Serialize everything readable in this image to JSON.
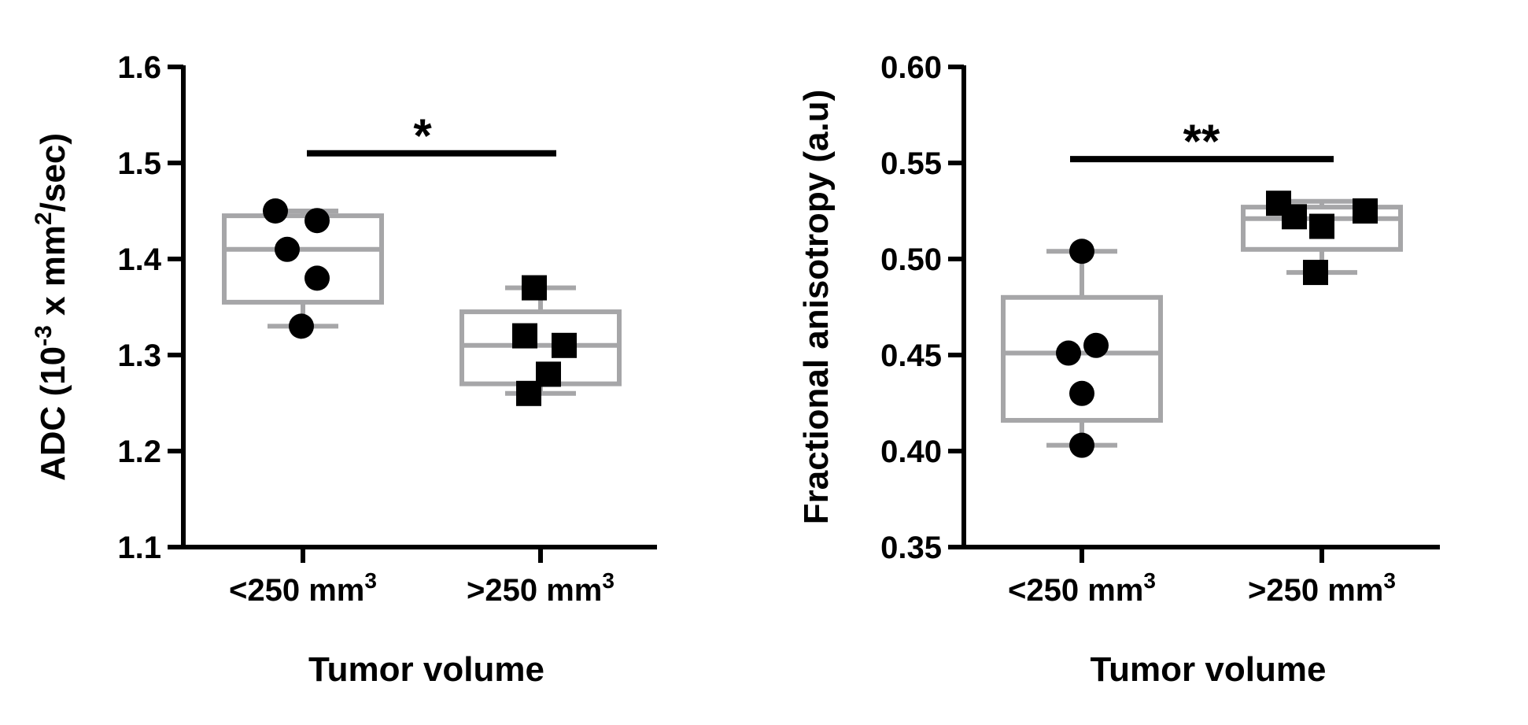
{
  "chart_data": [
    {
      "type": "box",
      "categories": [
        "<250 mm",
        ">250 mm"
      ],
      "category_superscripts": [
        "3",
        "3"
      ],
      "xlabel": "Tumor volume",
      "ylabel": {
        "prefix": "ADC (10",
        "sup1": "-3",
        "middle": " x mm",
        "sup2": "2",
        "suffix": "/sec)"
      },
      "ylim": [
        1.1,
        1.6
      ],
      "yticks": [
        "1.1",
        "1.2",
        "1.3",
        "1.4",
        "1.5",
        "1.6"
      ],
      "boxes": [
        {
          "min": 1.33,
          "q1": 1.355,
          "median": 1.41,
          "q3": 1.445,
          "max": 1.45
        },
        {
          "min": 1.26,
          "q1": 1.27,
          "median": 1.31,
          "q3": 1.345,
          "max": 1.37
        }
      ],
      "points": [
        {
          "marker": "circle",
          "values": [
            1.45,
            1.44,
            1.41,
            1.38,
            1.33
          ]
        },
        {
          "marker": "square",
          "values": [
            1.37,
            1.32,
            1.31,
            1.28,
            1.26
          ]
        }
      ],
      "significance": {
        "label": "*",
        "y": 1.51
      },
      "box_color": "#a6a6a8",
      "point_color": "#000000"
    },
    {
      "type": "box",
      "categories": [
        "<250 mm",
        ">250 mm"
      ],
      "category_superscripts": [
        "3",
        "3"
      ],
      "xlabel": "Tumor volume",
      "ylabel": {
        "prefix": "Fractional anisotropy (a.u)"
      },
      "ylim": [
        0.35,
        0.6
      ],
      "yticks": [
        "0.35",
        "0.40",
        "0.45",
        "0.50",
        "0.55",
        "0.60"
      ],
      "boxes": [
        {
          "min": 0.403,
          "q1": 0.416,
          "median": 0.451,
          "q3": 0.48,
          "max": 0.504
        },
        {
          "min": 0.493,
          "q1": 0.505,
          "median": 0.521,
          "q3": 0.527,
          "max": 0.53
        }
      ],
      "points": [
        {
          "marker": "circle",
          "values": [
            0.504,
            0.455,
            0.451,
            0.43,
            0.403
          ]
        },
        {
          "marker": "square",
          "values": [
            0.529,
            0.525,
            0.522,
            0.517,
            0.493
          ]
        }
      ],
      "significance": {
        "label": "**",
        "y": 0.552
      },
      "box_color": "#a6a6a8",
      "point_color": "#000000"
    }
  ]
}
